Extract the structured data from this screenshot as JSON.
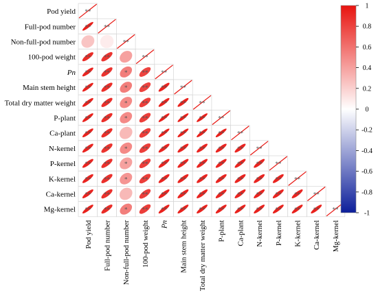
{
  "chart_data": {
    "type": "heatmap",
    "subtype": "correlation-ellipse-lower-triangle",
    "variables": [
      "Pod yield",
      "Full-pod number",
      "Non-full-pod number",
      "100-pod weight",
      "Pn",
      "Main stem height",
      "Total dry matter weight",
      "P-plant",
      "Ca-plant",
      "N-kernel",
      "P-kernel",
      "K-kernel",
      "Ca-kernel",
      "Mg-kernel"
    ],
    "italic_variables": [
      "Pn"
    ],
    "correlations": [
      [
        1.0
      ],
      [
        0.95,
        1.0
      ],
      [
        0.25,
        0.08,
        1.0
      ],
      [
        0.9,
        0.86,
        0.4,
        1.0
      ],
      [
        0.93,
        0.87,
        0.55,
        0.8,
        1.0
      ],
      [
        0.94,
        0.89,
        0.55,
        0.8,
        0.93,
        1.0
      ],
      [
        0.94,
        0.89,
        0.5,
        0.82,
        0.94,
        0.94,
        1.0
      ],
      [
        0.94,
        0.89,
        0.5,
        0.82,
        0.95,
        0.95,
        0.95,
        1.0
      ],
      [
        0.94,
        0.89,
        0.3,
        0.82,
        0.95,
        0.95,
        0.95,
        0.95,
        1.0
      ],
      [
        0.93,
        0.87,
        0.5,
        0.82,
        0.93,
        0.93,
        0.93,
        0.93,
        0.93,
        1.0
      ],
      [
        0.93,
        0.88,
        0.4,
        0.82,
        0.93,
        0.93,
        0.93,
        0.93,
        0.93,
        0.93,
        1.0
      ],
      [
        0.93,
        0.88,
        0.45,
        0.82,
        0.93,
        0.93,
        0.93,
        0.93,
        0.93,
        0.93,
        0.93,
        1.0
      ],
      [
        0.93,
        0.88,
        0.3,
        0.82,
        0.93,
        0.93,
        0.93,
        0.93,
        0.93,
        0.93,
        0.93,
        0.93,
        1.0
      ],
      [
        0.94,
        0.9,
        0.55,
        0.82,
        0.94,
        0.94,
        0.94,
        0.94,
        0.94,
        0.94,
        0.94,
        0.94,
        0.94,
        1.0
      ]
    ],
    "significance": [
      [
        "**"
      ],
      [
        "**",
        "**"
      ],
      [
        "",
        "",
        "**"
      ],
      [
        "**",
        "**",
        "",
        "**"
      ],
      [
        "**",
        "**",
        "*",
        "**",
        "**"
      ],
      [
        "**",
        "**",
        "*",
        "**",
        "**",
        "**"
      ],
      [
        "**",
        "**",
        "*",
        "**",
        "**",
        "**",
        "**"
      ],
      [
        "**",
        "**",
        "*",
        "**",
        "**",
        "**",
        "**",
        "**"
      ],
      [
        "**",
        "**",
        "",
        "**",
        "**",
        "**",
        "**",
        "**",
        "**"
      ],
      [
        "**",
        "**",
        "*",
        "**",
        "**",
        "**",
        "**",
        "**",
        "**",
        "**"
      ],
      [
        "**",
        "**",
        "*",
        "**",
        "**",
        "**",
        "**",
        "**",
        "**",
        "**",
        "**"
      ],
      [
        "**",
        "**",
        "*",
        "**",
        "**",
        "**",
        "**",
        "**",
        "**",
        "**",
        "**",
        "**"
      ],
      [
        "**",
        "**",
        "",
        "**",
        "**",
        "**",
        "**",
        "**",
        "**",
        "**",
        "**",
        "**",
        "**"
      ],
      [
        "**",
        "**",
        "*",
        "**",
        "**",
        "**",
        "**",
        "**",
        "**",
        "**",
        "**",
        "**",
        "**",
        "**"
      ]
    ],
    "colorbar": {
      "min": -1,
      "max": 1,
      "ticks": [
        "1",
        "0.8",
        "0.6",
        "0.4",
        "0.2",
        "0",
        "-0.2",
        "-0.4",
        "-0.6",
        "-0.8",
        "-1"
      ],
      "colors": {
        "negative": "#0c1e9a",
        "zero": "#ffffff",
        "positive": "#e8140f"
      }
    }
  }
}
